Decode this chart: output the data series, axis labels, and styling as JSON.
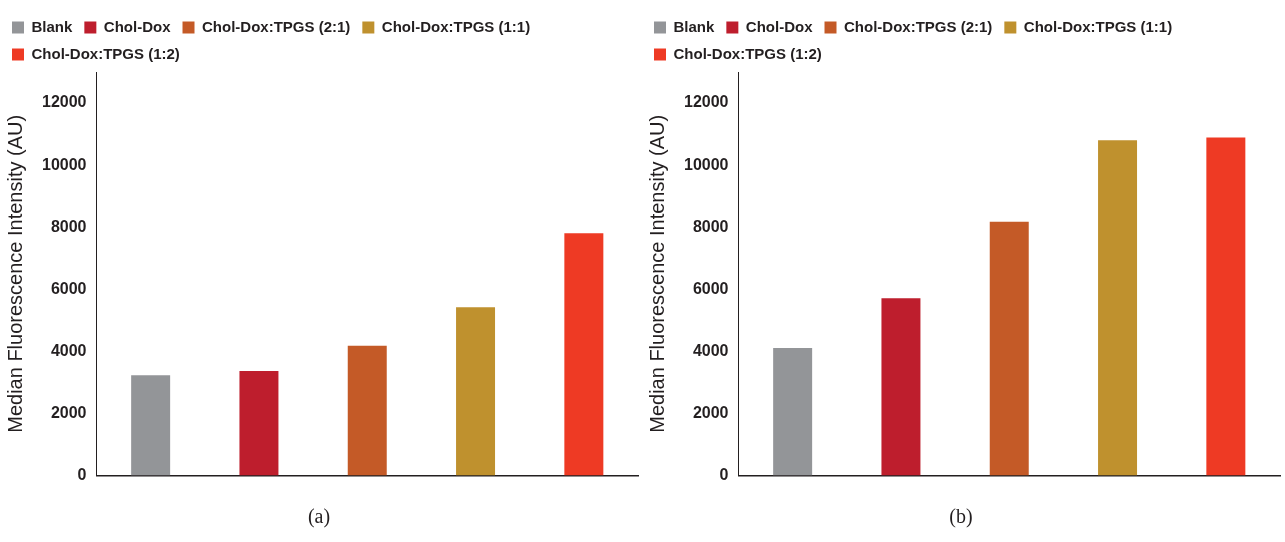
{
  "chart_data": [
    {
      "type": "bar",
      "title": "(a)",
      "ylabel": "Median Fluorescence Intensity (AU)",
      "categories": [
        null,
        null,
        null,
        null,
        null
      ],
      "series": [
        {
          "name": "Blank",
          "color": "#939598",
          "values": [
            3230,
            null,
            null,
            null,
            null
          ]
        },
        {
          "name": "Chol-Dox",
          "color": "#be1e2d",
          "values": [
            null,
            3370,
            null,
            null,
            null
          ]
        },
        {
          "name": "Chol-Dox:TPGS (2:1)",
          "color": "#c45a27",
          "values": [
            null,
            null,
            4180,
            null,
            null
          ]
        },
        {
          "name": "Chol-Dox:TPGS (1:1)",
          "color": "#bf912e",
          "values": [
            null,
            null,
            null,
            5420,
            null
          ]
        },
        {
          "name": "Chol-Dox:TPGS (1:2)",
          "color": "#ee3a24",
          "values": [
            null,
            null,
            null,
            null,
            7810
          ]
        }
      ],
      "ylim": [
        0,
        13000
      ],
      "yticks": [
        0,
        2000,
        4000,
        6000,
        8000,
        10000,
        12000
      ],
      "grid": false,
      "legend": "top"
    },
    {
      "type": "bar",
      "title": "(b)",
      "ylabel": "Median Fluorescence Intensity (AU)",
      "categories": [
        null,
        null,
        null,
        null,
        null
      ],
      "series": [
        {
          "name": "Blank",
          "color": "#939598",
          "values": [
            4110,
            null,
            null,
            null,
            null
          ]
        },
        {
          "name": "Chol-Dox",
          "color": "#be1e2d",
          "values": [
            null,
            5710,
            null,
            null,
            null
          ]
        },
        {
          "name": "Chol-Dox:TPGS (2:1)",
          "color": "#c45a27",
          "values": [
            null,
            null,
            8180,
            null,
            null
          ]
        },
        {
          "name": "Chol-Dox:TPGS (1:1)",
          "color": "#bf912e",
          "values": [
            null,
            null,
            null,
            10800,
            null
          ]
        },
        {
          "name": "Chol-Dox:TPGS (1:2)",
          "color": "#ee3a24",
          "values": [
            null,
            null,
            null,
            null,
            10890
          ]
        }
      ],
      "ylim": [
        0,
        13000
      ],
      "yticks": [
        0,
        2000,
        4000,
        6000,
        8000,
        10000,
        12000
      ],
      "grid": false,
      "legend": "top"
    }
  ]
}
